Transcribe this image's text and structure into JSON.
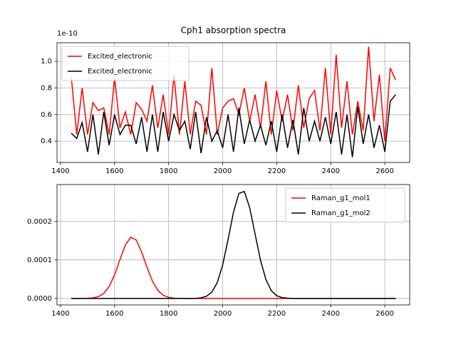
{
  "chart_data": [
    {
      "type": "line",
      "title": "Cph1 absorption spectra",
      "offset_text": "1e-10",
      "x": [
        1440,
        1460,
        1480,
        1500,
        1520,
        1540,
        1560,
        1580,
        1600,
        1620,
        1640,
        1660,
        1680,
        1700,
        1720,
        1740,
        1760,
        1780,
        1800,
        1820,
        1840,
        1860,
        1880,
        1900,
        1920,
        1940,
        1960,
        1980,
        2000,
        2020,
        2040,
        2060,
        2080,
        2100,
        2120,
        2140,
        2160,
        2180,
        2200,
        2220,
        2240,
        2260,
        2280,
        2300,
        2320,
        2340,
        2360,
        2380,
        2400,
        2420,
        2440,
        2460,
        2480,
        2500,
        2520,
        2540,
        2560,
        2580,
        2600,
        2620,
        2640
      ],
      "series": [
        {
          "name": "Excited_electronic",
          "color": "#ff0000",
          "values": [
            0.88,
            0.45,
            0.8,
            0.45,
            0.69,
            0.63,
            0.65,
            0.45,
            0.88,
            0.5,
            0.62,
            0.45,
            0.69,
            0.64,
            0.55,
            0.82,
            0.5,
            0.75,
            0.45,
            0.9,
            0.45,
            0.85,
            0.45,
            0.7,
            0.67,
            0.45,
            0.95,
            0.45,
            0.65,
            0.7,
            0.72,
            0.6,
            0.8,
            0.55,
            0.75,
            0.5,
            0.85,
            0.45,
            0.78,
            0.55,
            0.75,
            0.48,
            0.82,
            0.5,
            0.72,
            0.78,
            0.48,
            0.95,
            0.45,
            1.05,
            0.5,
            0.85,
            0.45,
            0.7,
            0.48,
            1.11,
            0.55,
            0.9,
            0.4,
            0.95,
            0.86
          ]
        },
        {
          "name": "Excited_electronic",
          "color": "#000000",
          "values": [
            0.46,
            0.42,
            0.54,
            0.32,
            0.6,
            0.3,
            0.62,
            0.37,
            0.6,
            0.45,
            0.52,
            0.52,
            0.38,
            0.58,
            0.32,
            0.6,
            0.32,
            0.62,
            0.4,
            0.6,
            0.48,
            0.55,
            0.34,
            0.62,
            0.31,
            0.58,
            0.4,
            0.48,
            0.35,
            0.6,
            0.32,
            0.65,
            0.38,
            0.56,
            0.4,
            0.52,
            0.37,
            0.55,
            0.32,
            0.6,
            0.35,
            0.56,
            0.3,
            0.65,
            0.4,
            0.55,
            0.4,
            0.58,
            0.38,
            0.62,
            0.3,
            0.6,
            0.28,
            0.66,
            0.38,
            0.6,
            0.35,
            0.52,
            0.32,
            0.7,
            0.75
          ]
        }
      ],
      "xlim": [
        1387,
        2692
      ],
      "ylim": [
        0.24,
        1.14
      ],
      "xticks": [
        1400,
        1600,
        1800,
        2000,
        2200,
        2400,
        2600
      ],
      "yticks": [
        0.4,
        0.6,
        0.8,
        {
          "value": 1,
          "label": "1.0"
        }
      ],
      "grid": true,
      "legend_loc": "upper left"
    },
    {
      "type": "line",
      "x": [
        1440,
        1460,
        1480,
        1500,
        1520,
        1540,
        1560,
        1580,
        1600,
        1620,
        1640,
        1660,
        1680,
        1700,
        1720,
        1740,
        1760,
        1780,
        1800,
        1820,
        1840,
        1860,
        1880,
        1900,
        1920,
        1940,
        1960,
        1980,
        2000,
        2020,
        2040,
        2060,
        2080,
        2100,
        2120,
        2140,
        2160,
        2180,
        2200,
        2220,
        2240,
        2260,
        2280,
        2300,
        2320,
        2340,
        2360,
        2380,
        2400,
        2420,
        2440,
        2460,
        2480,
        2500,
        2520,
        2540,
        2560,
        2580,
        2600,
        2620,
        2640
      ],
      "series": [
        {
          "name": "Raman_g1_mol1",
          "color": "#ff0000",
          "values": [
            0,
            0,
            0,
            3e-07,
            1.4e-06,
            4.6e-06,
            1.3e-05,
            3.1e-05,
            6.1e-05,
            0.000101,
            0.000139,
            0.000159,
            0.000152,
            0.000121,
            8.1e-05,
            4.5e-05,
            2.1e-05,
            8e-06,
            2.6e-06,
            6e-07,
            0,
            0,
            0,
            0,
            0,
            0,
            0,
            0,
            0,
            0,
            0,
            0,
            0,
            0,
            0,
            0,
            0,
            0,
            0,
            0,
            0,
            0,
            0,
            0,
            0,
            0,
            0,
            0,
            0,
            0,
            0,
            0,
            0,
            0,
            0,
            0,
            0,
            0,
            0,
            0,
            0
          ]
        },
        {
          "name": "Raman_g1_mol2",
          "color": "#000000",
          "values": [
            0,
            0,
            0,
            0,
            0,
            0,
            0,
            0,
            0,
            0,
            0,
            0,
            0,
            0,
            0,
            0,
            0,
            0,
            0,
            0,
            0,
            0,
            0,
            0,
            1.5e-06,
            5.5e-06,
            1.65e-05,
            4.1e-05,
            8.7e-05,
            0.000153,
            0.000224,
            0.000273,
            0.000278,
            0.000236,
            0.000167,
            9.9e-05,
            4.9e-05,
            2e-05,
            6.9e-06,
            2e-06,
            5e-07,
            0,
            0,
            0,
            0,
            0,
            0,
            0,
            0,
            0,
            0,
            0,
            0,
            0,
            0,
            0,
            0,
            0,
            0,
            0,
            0
          ]
        }
      ],
      "xlim": [
        1387,
        2692
      ],
      "ylim": [
        -1.7e-05,
        0.000296
      ],
      "xticks": [
        1400,
        1600,
        1800,
        2000,
        2200,
        2400,
        2600
      ],
      "yticks": [
        {
          "value": 0,
          "label": "0.0000"
        },
        {
          "value": 0.0001,
          "label": "0.0001"
        },
        {
          "value": 0.0002,
          "label": "0.0002"
        }
      ],
      "grid": true,
      "legend_loc": "upper right"
    }
  ]
}
